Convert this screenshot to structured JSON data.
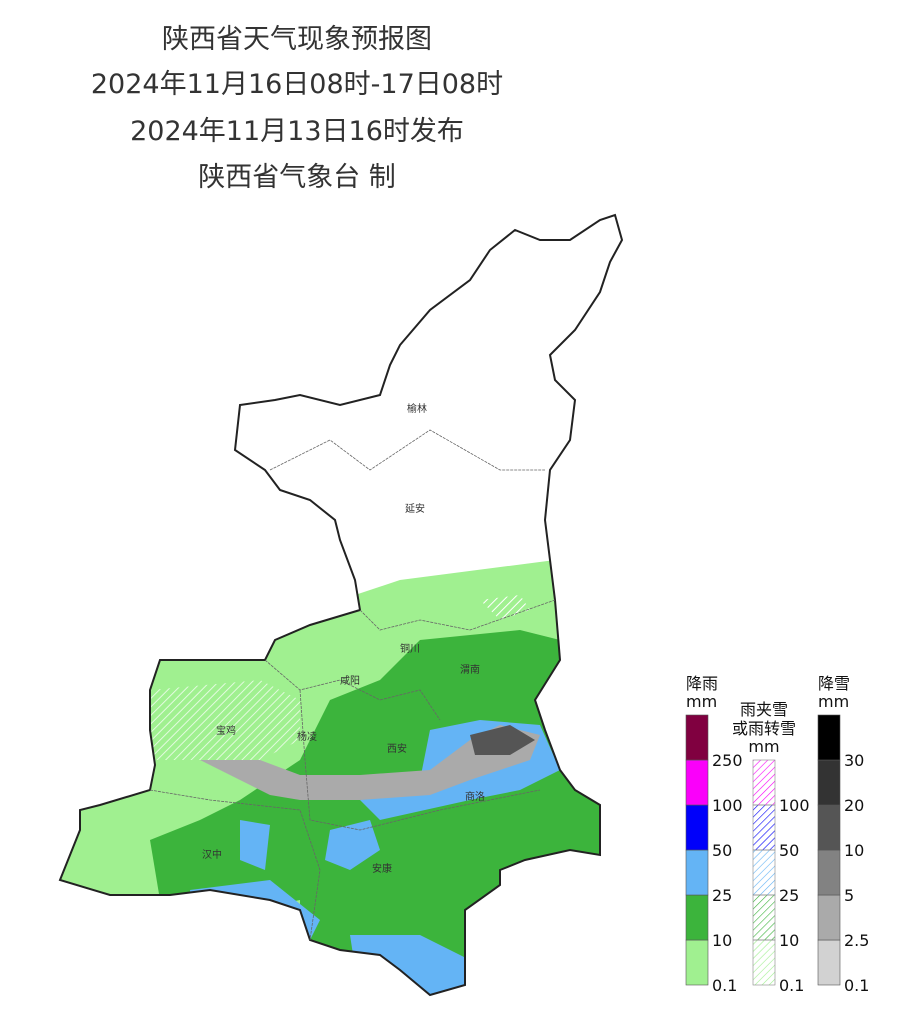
{
  "header": {
    "title": "陕西省天气现象预报图",
    "period": "2024年11月16日08时-17日08时",
    "issued": "2024年11月13日16时发布",
    "issuer": "陕西省气象台 制"
  },
  "cities": [
    "榆林",
    "延安",
    "铜川",
    "咸阳",
    "渭南",
    "宝鸡",
    "杨凌",
    "西安",
    "商洛",
    "汉中",
    "安康"
  ],
  "legend": [
    {
      "title": [
        "降雨"
      ],
      "unit": "mm",
      "ticks": [
        0.1,
        10,
        25,
        50,
        100,
        250
      ],
      "colors": [
        "#a0f090",
        "#3cb43c",
        "#64b4f5",
        "#0000fa",
        "#fa00fa",
        "#800040"
      ],
      "hatched": false
    },
    {
      "title": [
        "雨夹雪",
        "或雨转雪"
      ],
      "unit": "mm",
      "ticks": [
        0.1,
        10,
        25,
        50,
        100
      ],
      "colors": [
        "#a0f090",
        "#3cb43c",
        "#64b4f5",
        "#0000fa",
        "#fa00fa"
      ],
      "hatched": true
    },
    {
      "title": [
        "降雪"
      ],
      "unit": "mm",
      "ticks": [
        0.1,
        2.5,
        5,
        10,
        20,
        30
      ],
      "colors": [
        "#d2d2d2",
        "#aaaaaa",
        "#828282",
        "#555555",
        "#333333",
        "#000000"
      ],
      "hatched": false
    }
  ]
}
